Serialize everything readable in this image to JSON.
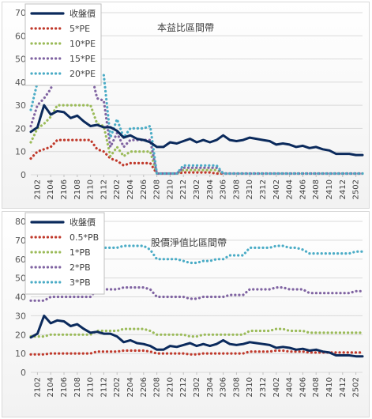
{
  "chart_data": [
    {
      "type": "line",
      "title": "本益比區間帶",
      "x": [
        "2101",
        "2102",
        "2103",
        "2104",
        "2105",
        "2106",
        "2107",
        "2108",
        "2109",
        "2110",
        "2111",
        "2112",
        "2201",
        "2202",
        "2203",
        "2204",
        "2205",
        "2206",
        "2207",
        "2208",
        "2209",
        "2210",
        "2211",
        "2212",
        "2301",
        "2302",
        "2303",
        "2304",
        "2305",
        "2306",
        "2307",
        "2308",
        "2309",
        "2310",
        "2311",
        "2312",
        "2401",
        "2402",
        "2403",
        "2404",
        "2405",
        "2406",
        "2407",
        "2408",
        "2409",
        "2410",
        "2411",
        "2412",
        "2501",
        "2502",
        "2503"
      ],
      "x_tick_labels": [
        "2102",
        "2104",
        "2106",
        "2108",
        "2110",
        "2112",
        "2202",
        "2204",
        "2206",
        "2208",
        "2210",
        "2212",
        "2302",
        "2304",
        "2306",
        "2308",
        "2310",
        "2312",
        "2402",
        "2404",
        "2406",
        "2408",
        "2410",
        "2412",
        "2502"
      ],
      "ylim": [
        0,
        70
      ],
      "y_ticks": [
        0,
        10,
        20,
        30,
        40,
        50,
        60,
        70
      ],
      "grid": true,
      "legend": "top-left",
      "series": [
        {
          "name": "收盤價",
          "color": "#0b2a5c",
          "style": "solid",
          "values": [
            18.5,
            20.5,
            30,
            26,
            27.5,
            27,
            24.5,
            25.5,
            23,
            21,
            21.5,
            20.5,
            20.5,
            19,
            16,
            17,
            15.5,
            15,
            14,
            12,
            12,
            14,
            13.5,
            14.5,
            15.5,
            14,
            15,
            14,
            15,
            17,
            15,
            14.5,
            15,
            16,
            15.5,
            15,
            14.5,
            13,
            13.5,
            13,
            12,
            12.5,
            11.5,
            12,
            11,
            10.5,
            9,
            9,
            9,
            8.5,
            8.5
          ]
        },
        {
          "name": "5*PE",
          "color": "#c0392b",
          "style": "dotted",
          "values": [
            7,
            10,
            11,
            12,
            15,
            15,
            15,
            15,
            15,
            15,
            11,
            10,
            7,
            6,
            4,
            5,
            5,
            5,
            5,
            0.5,
            0.5,
            0.5,
            0.5,
            1,
            1,
            1,
            1,
            1,
            0.5,
            0.5,
            0.5,
            0.5,
            0.5,
            0.5,
            0.5,
            0.5,
            0.5,
            0.5,
            0.5,
            0.5,
            0.5,
            0.5,
            0.5,
            0.5,
            0.5,
            0.5,
            0.5,
            0.5,
            0.5,
            0.5,
            0.5
          ]
        },
        {
          "name": "10*PE",
          "color": "#9bbb59",
          "style": "dotted",
          "values": [
            14,
            20,
            22,
            25,
            30,
            30,
            30,
            30,
            30,
            30,
            22,
            21,
            8,
            12,
            8,
            10,
            10,
            10,
            10,
            0.5,
            0.5,
            0.5,
            0.5,
            2,
            2,
            2,
            2,
            2,
            2,
            0.5,
            0.5,
            0.5,
            0.5,
            0.5,
            0.5,
            0.5,
            0.5,
            0.5,
            0.5,
            0.5,
            0.5,
            0.5,
            0.5,
            0.5,
            0.5,
            0.5,
            0.5,
            0.5,
            0.5,
            0.5,
            0.5
          ]
        },
        {
          "name": "15*PE",
          "color": "#8064a2",
          "style": "dotted",
          "values": [
            21,
            30,
            33,
            37,
            45,
            45,
            45,
            45,
            45,
            45,
            33,
            32,
            12,
            18,
            12,
            15,
            15,
            15,
            15,
            0.5,
            0.5,
            0.5,
            0.5,
            3,
            3,
            3,
            3,
            3,
            3,
            0.5,
            0.5,
            0.5,
            0.5,
            0.5,
            0.5,
            0.5,
            0.5,
            0.5,
            0.5,
            0.5,
            0.5,
            0.5,
            0.5,
            0.5,
            0.5,
            0.5,
            0.5,
            0.5,
            0.5,
            0.5,
            0.5
          ]
        },
        {
          "name": "20*PE",
          "color": "#4bacc6",
          "style": "dotted",
          "values": [
            28,
            40,
            44,
            50,
            60,
            60,
            60,
            60,
            60,
            60,
            44,
            43,
            16,
            24,
            16,
            20,
            20,
            20,
            21,
            0.5,
            0.5,
            0.5,
            0.5,
            4,
            4,
            4,
            4,
            4,
            4,
            0.5,
            0.5,
            0.5,
            0.5,
            0.5,
            0.5,
            0.5,
            0.5,
            0.5,
            0.5,
            0.5,
            0.5,
            0.5,
            0.5,
            0.5,
            0.5,
            0.5,
            0.5,
            0.5,
            0.5,
            0.5,
            0.5
          ]
        }
      ]
    },
    {
      "type": "line",
      "title": "股價淨值比區間帶",
      "x": [
        "2101",
        "2102",
        "2103",
        "2104",
        "2105",
        "2106",
        "2107",
        "2108",
        "2109",
        "2110",
        "2111",
        "2112",
        "2201",
        "2202",
        "2203",
        "2204",
        "2205",
        "2206",
        "2207",
        "2208",
        "2209",
        "2210",
        "2211",
        "2212",
        "2301",
        "2302",
        "2303",
        "2304",
        "2305",
        "2306",
        "2307",
        "2308",
        "2309",
        "2310",
        "2311",
        "2312",
        "2401",
        "2402",
        "2403",
        "2404",
        "2405",
        "2406",
        "2407",
        "2408",
        "2409",
        "2410",
        "2411",
        "2412",
        "2501",
        "2502",
        "2503"
      ],
      "x_tick_labels": [
        "2102",
        "2104",
        "2106",
        "2108",
        "2110",
        "2112",
        "2202",
        "2204",
        "2206",
        "2208",
        "2210",
        "2212",
        "2302",
        "2304",
        "2306",
        "2308",
        "2310",
        "2312",
        "2402",
        "2404",
        "2406",
        "2408",
        "2410",
        "2412",
        "2502"
      ],
      "ylim": [
        0,
        80
      ],
      "y_ticks": [
        0,
        10,
        20,
        30,
        40,
        50,
        60,
        70,
        80
      ],
      "grid": true,
      "legend": "top-left",
      "series": [
        {
          "name": "收盤價",
          "color": "#0b2a5c",
          "style": "solid",
          "values": [
            18.5,
            20.5,
            30,
            26,
            27.5,
            27,
            24.5,
            25.5,
            23,
            21,
            21.5,
            20.5,
            20.5,
            19,
            16,
            17,
            15.5,
            15,
            14,
            12,
            12,
            14,
            13.5,
            14.5,
            15.5,
            14,
            15,
            14,
            15,
            17,
            15,
            14.5,
            15,
            16,
            15.5,
            15,
            14.5,
            13,
            13.5,
            13,
            12,
            12.5,
            11.5,
            12,
            11,
            10.5,
            9,
            9,
            9,
            8.5,
            8.5
          ]
        },
        {
          "name": "0.5*PB",
          "color": "#c0392b",
          "style": "dotted",
          "values": [
            9.5,
            9.5,
            9.5,
            10,
            10,
            10,
            10,
            10,
            10,
            10,
            11,
            11,
            11,
            11,
            11.5,
            11.5,
            11.5,
            11.5,
            11,
            10,
            10,
            10,
            10,
            10,
            9.5,
            9.5,
            10,
            10,
            10,
            10,
            10,
            10,
            10,
            11,
            11,
            11,
            11,
            11.5,
            11.5,
            11,
            11,
            11,
            10.5,
            10.5,
            10.5,
            10.5,
            10.5,
            10.5,
            10.5,
            10.5,
            10.5
          ]
        },
        {
          "name": "1*PB",
          "color": "#9bbb59",
          "style": "dotted",
          "values": [
            19,
            19,
            19,
            20,
            20,
            20,
            20,
            20,
            20,
            20,
            22,
            22,
            22,
            22,
            23,
            23,
            23,
            23,
            22,
            20,
            20,
            20,
            20,
            20,
            19,
            19,
            20,
            20,
            20,
            20,
            20,
            20,
            20,
            22,
            22,
            22,
            22,
            23,
            23,
            22,
            22,
            22,
            21,
            21,
            21,
            21,
            21,
            21,
            21,
            21,
            21
          ]
        },
        {
          "name": "2*PB",
          "color": "#8064a2",
          "style": "dotted",
          "values": [
            38,
            38,
            38,
            40,
            40,
            40,
            40,
            40,
            40,
            40,
            44,
            44,
            44,
            44,
            45,
            45,
            45,
            45,
            44,
            40,
            40,
            40,
            40,
            40,
            39,
            39,
            40,
            40,
            40,
            40,
            41,
            41,
            41,
            44,
            44,
            44,
            44,
            45,
            45,
            44,
            44,
            44,
            42,
            42,
            42,
            42,
            42,
            42,
            42,
            43,
            43
          ]
        },
        {
          "name": "3*PB",
          "color": "#4bacc6",
          "style": "dotted",
          "values": [
            56,
            56,
            56,
            60,
            60,
            60,
            60,
            60,
            60,
            60,
            66,
            66,
            66,
            66,
            67,
            67,
            67,
            67,
            65,
            60,
            60,
            60,
            60,
            59,
            58,
            58,
            59,
            59,
            60,
            60,
            62,
            62,
            62,
            66,
            66,
            66,
            66,
            67,
            67,
            66,
            66,
            65,
            63,
            63,
            63,
            63,
            63,
            63,
            63,
            64,
            64
          ]
        }
      ]
    }
  ]
}
